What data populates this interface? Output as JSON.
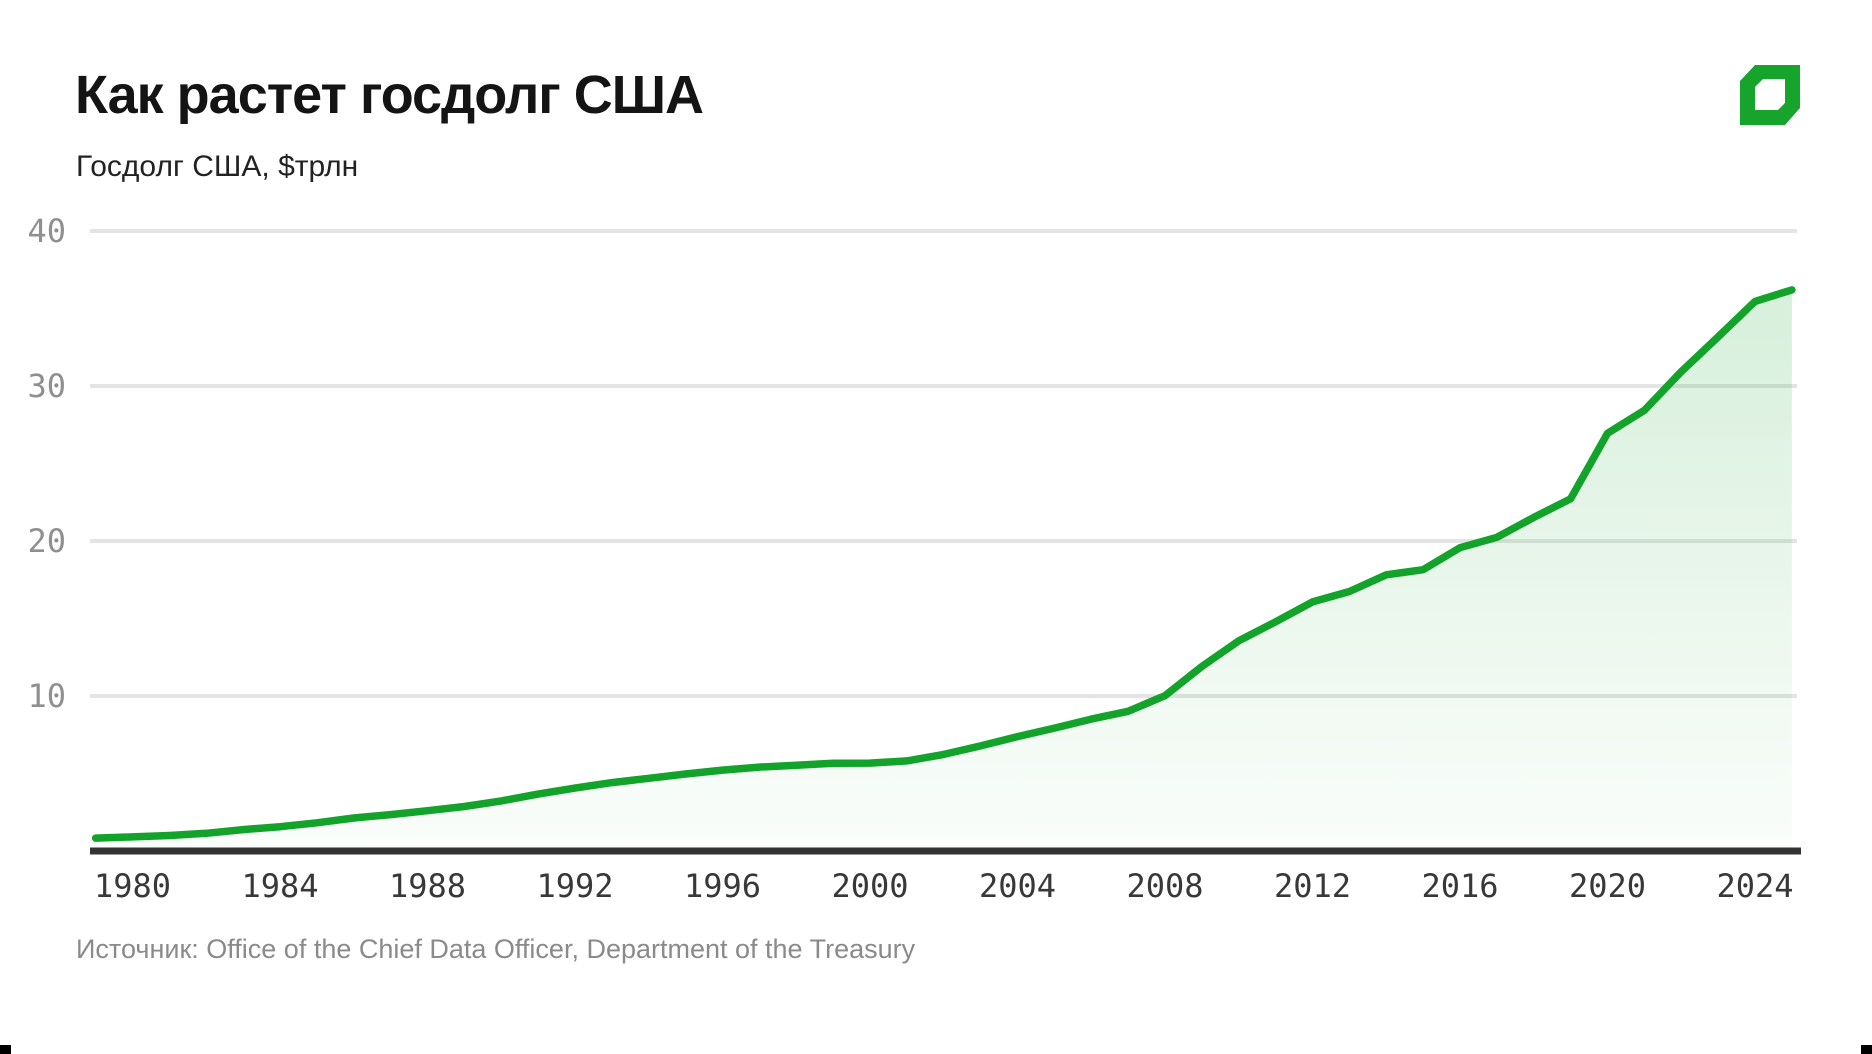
{
  "header": {
    "title": "Как растет госдолг США",
    "subtitle": "Госдолг США, $трлн"
  },
  "footer": {
    "source": "Источник: Office of the Chief Data Officer, Department of the Treasury"
  },
  "branding": {
    "logo": "green-cube-logo",
    "logo_color": "#16A42C"
  },
  "colors": {
    "line": "#13A32B",
    "grid": "#e4e4e4",
    "axis": "#333333",
    "y_tick": "#8f8f8f",
    "x_tick": "#383838",
    "fill_top_opacity": 0.17,
    "fill_bottom_opacity": 0.02
  },
  "chart_data": {
    "type": "area",
    "title": "Как растет госдолг США",
    "subtitle": "Госдолг США, $трлн",
    "ylabel": "Госдолг США, $трлн",
    "xlabel": "",
    "ylim": [
      0,
      40
    ],
    "xlim": [
      1979,
      2025
    ],
    "y_ticks": [
      40,
      30,
      20,
      10
    ],
    "x_ticks": [
      1980,
      1984,
      1988,
      1992,
      1996,
      2000,
      2004,
      2008,
      2012,
      2016,
      2020,
      2024
    ],
    "grid": "horizontal",
    "legend": "none",
    "series": [
      {
        "name": "Госдолг США, $трлн",
        "points": [
          [
            1979,
            0.83
          ],
          [
            1980,
            0.91
          ],
          [
            1981,
            1.0
          ],
          [
            1982,
            1.14
          ],
          [
            1983,
            1.38
          ],
          [
            1984,
            1.57
          ],
          [
            1985,
            1.82
          ],
          [
            1986,
            2.13
          ],
          [
            1987,
            2.35
          ],
          [
            1988,
            2.6
          ],
          [
            1989,
            2.87
          ],
          [
            1990,
            3.23
          ],
          [
            1991,
            3.67
          ],
          [
            1992,
            4.06
          ],
          [
            1993,
            4.41
          ],
          [
            1994,
            4.69
          ],
          [
            1995,
            4.97
          ],
          [
            1996,
            5.22
          ],
          [
            1997,
            5.41
          ],
          [
            1998,
            5.53
          ],
          [
            1999,
            5.66
          ],
          [
            2000,
            5.67
          ],
          [
            2001,
            5.81
          ],
          [
            2002,
            6.23
          ],
          [
            2003,
            6.78
          ],
          [
            2004,
            7.38
          ],
          [
            2005,
            7.93
          ],
          [
            2006,
            8.51
          ],
          [
            2007,
            9.01
          ],
          [
            2008,
            10.02
          ],
          [
            2009,
            11.91
          ],
          [
            2010,
            13.56
          ],
          [
            2011,
            14.79
          ],
          [
            2012,
            16.07
          ],
          [
            2013,
            16.74
          ],
          [
            2014,
            17.82
          ],
          [
            2015,
            18.15
          ],
          [
            2016,
            19.57
          ],
          [
            2017,
            20.24
          ],
          [
            2018,
            21.52
          ],
          [
            2019,
            22.72
          ],
          [
            2020,
            26.95
          ],
          [
            2021,
            28.43
          ],
          [
            2022,
            30.93
          ],
          [
            2023,
            33.17
          ],
          [
            2024,
            35.46
          ],
          [
            2025,
            36.2
          ]
        ]
      }
    ],
    "source": "Источник: Office of the Chief Data Officer, Department of the Treasury"
  }
}
